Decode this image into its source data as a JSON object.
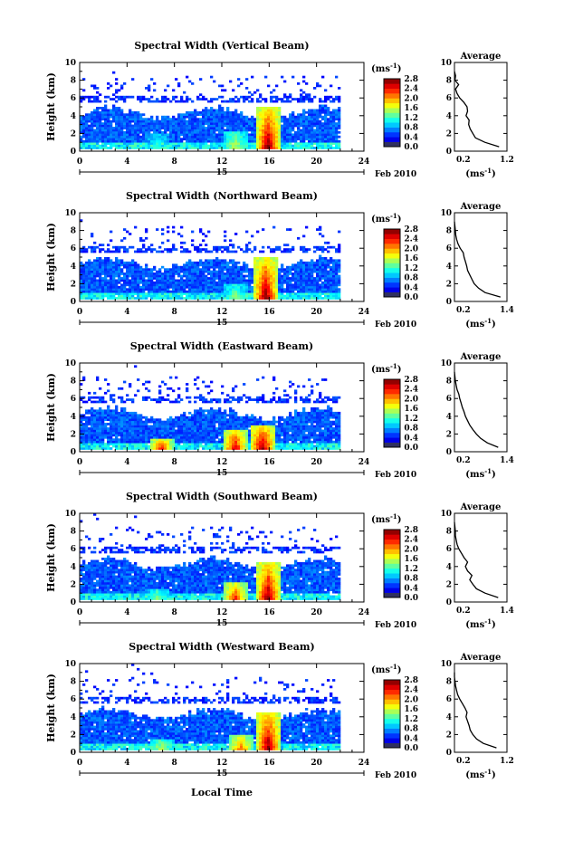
{
  "figure": {
    "date_label": "Feb 2010",
    "day_label": "15",
    "xlabel": "Local Time"
  },
  "chart_data": [
    {
      "type": "heatmap",
      "title": "Spectral Width (Vertical Beam)",
      "ylabel": "Height (km)",
      "xlabel": "",
      "xlim": [
        0,
        24
      ],
      "ylim": [
        0,
        10
      ],
      "xticks": [
        0,
        4,
        8,
        12,
        16,
        20,
        24
      ],
      "yticks": [
        0,
        2,
        4,
        6,
        8,
        10
      ],
      "colorbar": {
        "unit_base": "(ms",
        "unit_exp": "-1",
        "unit_close": ")",
        "ticks": [
          "0.0",
          "0.4",
          "0.8",
          "1.2",
          "1.6",
          "2.0",
          "2.4",
          "2.8"
        ],
        "range": [
          0,
          2.8
        ]
      },
      "data_extent_hours": 22,
      "convective_cores": [
        {
          "time": 6.5,
          "top_km": 1.8,
          "peak": 1.2
        },
        {
          "time": 13,
          "top_km": 2.2,
          "peak": 1.6
        },
        {
          "time": 15.8,
          "top_km": 5.0,
          "peak": 2.8
        }
      ],
      "average_profile": {
        "title": "Average",
        "xlabel_base": "(ms",
        "xlabel_exp": "-1",
        "xlabel_close": ")",
        "xlim": [
          0.2,
          1.2
        ],
        "xticks": [
          "0.2",
          "1.2"
        ],
        "ylim": [
          0,
          10
        ],
        "yticks": [
          0,
          2,
          4,
          6,
          8,
          10
        ],
        "heights": [
          0.5,
          1,
          1.5,
          2,
          2.5,
          3,
          3.5,
          4,
          4.5,
          5,
          5.5,
          6,
          6.5,
          7,
          7.5,
          8,
          8.5,
          9
        ],
        "values": [
          1.05,
          0.78,
          0.6,
          0.55,
          0.5,
          0.47,
          0.48,
          0.42,
          0.45,
          0.44,
          0.38,
          0.3,
          0.25,
          0.22,
          0.28,
          0.21,
          0.22,
          0.2
        ]
      }
    },
    {
      "type": "heatmap",
      "title": "Spectral Width (Northward Beam)",
      "ylabel": "Height (km)",
      "xlabel": "",
      "xlim": [
        0,
        24
      ],
      "ylim": [
        0,
        10
      ],
      "xticks": [
        0,
        4,
        8,
        12,
        16,
        20,
        24
      ],
      "yticks": [
        0,
        2,
        4,
        6,
        8,
        10
      ],
      "colorbar": {
        "unit_base": "(ms",
        "unit_exp": "-1",
        "unit_close": ")",
        "ticks": [
          "0.0",
          "0.4",
          "0.8",
          "1.2",
          "1.6",
          "2.0",
          "2.4",
          "2.8"
        ],
        "range": [
          0,
          2.8
        ]
      },
      "data_extent_hours": 22,
      "convective_cores": [
        {
          "time": 13,
          "top_km": 2.0,
          "peak": 1.4
        },
        {
          "time": 15.6,
          "top_km": 5.0,
          "peak": 2.8
        }
      ],
      "average_profile": {
        "title": "Average",
        "xlabel_base": "(ms",
        "xlabel_exp": "-1",
        "xlabel_close": ")",
        "xlim": [
          0.2,
          1.4
        ],
        "xticks": [
          "0.2",
          "1.4"
        ],
        "ylim": [
          0,
          10
        ],
        "yticks": [
          0,
          2,
          4,
          6,
          8,
          10
        ],
        "heights": [
          0.5,
          1,
          1.5,
          2,
          2.5,
          3,
          3.5,
          4,
          4.5,
          5,
          5.5,
          6,
          6.5,
          7,
          7.5,
          8,
          8.5,
          9
        ],
        "values": [
          1.25,
          0.9,
          0.75,
          0.65,
          0.6,
          0.55,
          0.5,
          0.48,
          0.45,
          0.42,
          0.4,
          0.33,
          0.28,
          0.25,
          0.23,
          0.22,
          0.21,
          0.2
        ]
      }
    },
    {
      "type": "heatmap",
      "title": "Spectral Width (Eastward Beam)",
      "ylabel": "Height (km)",
      "xlabel": "",
      "xlim": [
        0,
        24
      ],
      "ylim": [
        0,
        10
      ],
      "xticks": [
        0,
        4,
        8,
        12,
        16,
        20,
        24
      ],
      "yticks": [
        0,
        2,
        4,
        6,
        8,
        10
      ],
      "colorbar": {
        "unit_base": "(ms",
        "unit_exp": "-1",
        "unit_close": ")",
        "ticks": [
          "0.0",
          "0.4",
          "0.8",
          "1.2",
          "1.6",
          "2.0",
          "2.4",
          "2.8"
        ],
        "range": [
          0,
          2.8
        ]
      },
      "data_extent_hours": 22,
      "convective_cores": [
        {
          "time": 6.8,
          "top_km": 1.5,
          "peak": 2.4
        },
        {
          "time": 13,
          "top_km": 2.5,
          "peak": 2.6
        },
        {
          "time": 15.3,
          "top_km": 3.0,
          "peak": 2.8
        }
      ],
      "average_profile": {
        "title": "Average",
        "xlabel_base": "(ms",
        "xlabel_exp": "-1",
        "xlabel_close": ")",
        "xlim": [
          0.2,
          1.4
        ],
        "xticks": [
          "0.2",
          "1.4"
        ],
        "ylim": [
          0,
          10
        ],
        "yticks": [
          0,
          2,
          4,
          6,
          8,
          10
        ],
        "heights": [
          0.5,
          1,
          1.5,
          2,
          2.5,
          3,
          3.5,
          4,
          4.5,
          5,
          5.5,
          6,
          6.5,
          7,
          7.5,
          8,
          8.5,
          9
        ],
        "values": [
          1.2,
          0.95,
          0.8,
          0.7,
          0.62,
          0.55,
          0.5,
          0.45,
          0.42,
          0.38,
          0.35,
          0.32,
          0.3,
          0.26,
          0.24,
          0.22,
          0.21,
          0.2
        ]
      }
    },
    {
      "type": "heatmap",
      "title": "Spectral Width (Southward Beam)",
      "ylabel": "Height (km)",
      "xlabel": "",
      "xlim": [
        0,
        24
      ],
      "ylim": [
        0,
        10
      ],
      "xticks": [
        0,
        4,
        8,
        12,
        16,
        20,
        24
      ],
      "yticks": [
        0,
        2,
        4,
        6,
        8,
        10
      ],
      "colorbar": {
        "unit_base": "(ms",
        "unit_exp": "-1",
        "unit_close": ")",
        "ticks": [
          "0.0",
          "0.4",
          "0.8",
          "1.2",
          "1.6",
          "2.0",
          "2.4",
          "2.8"
        ],
        "range": [
          0,
          2.8
        ]
      },
      "data_extent_hours": 22,
      "convective_cores": [
        {
          "time": 6.5,
          "top_km": 1.5,
          "peak": 1.4
        },
        {
          "time": 13,
          "top_km": 2.2,
          "peak": 2.4
        },
        {
          "time": 15.8,
          "top_km": 4.5,
          "peak": 2.8
        }
      ],
      "average_profile": {
        "title": "Average",
        "xlabel_base": "(ms",
        "xlabel_exp": "-1",
        "xlabel_close": ")",
        "xlim": [
          0.2,
          1.4
        ],
        "xticks": [
          "0.2",
          "1.4"
        ],
        "ylim": [
          0,
          10
        ],
        "yticks": [
          0,
          2,
          4,
          6,
          8,
          10
        ],
        "heights": [
          0.5,
          1,
          1.5,
          2,
          2.5,
          3,
          3.5,
          4,
          4.5,
          5,
          5.5,
          6,
          6.5,
          7,
          7.5,
          8,
          8.5,
          9
        ],
        "values": [
          1.2,
          0.9,
          0.7,
          0.62,
          0.55,
          0.6,
          0.5,
          0.45,
          0.5,
          0.42,
          0.36,
          0.3,
          0.26,
          0.24,
          0.22,
          0.22,
          0.21,
          0.2
        ]
      }
    },
    {
      "type": "heatmap",
      "title": "Spectral Width (Westward Beam)",
      "ylabel": "Height (km)",
      "xlabel": "",
      "xlim": [
        0,
        24
      ],
      "ylim": [
        0,
        10
      ],
      "xticks": [
        0,
        4,
        8,
        12,
        16,
        20,
        24
      ],
      "yticks": [
        0,
        2,
        4,
        6,
        8,
        10
      ],
      "colorbar": {
        "unit_base": "(ms",
        "unit_exp": "-1",
        "unit_close": ")",
        "ticks": [
          "0.0",
          "0.4",
          "0.8",
          "1.2",
          "1.6",
          "2.0",
          "2.4",
          "2.8"
        ],
        "range": [
          0,
          2.8
        ]
      },
      "data_extent_hours": 22,
      "convective_cores": [
        {
          "time": 6.8,
          "top_km": 1.5,
          "peak": 1.6
        },
        {
          "time": 13.5,
          "top_km": 2.0,
          "peak": 2.2
        },
        {
          "time": 15.8,
          "top_km": 4.5,
          "peak": 2.8
        }
      ],
      "average_profile": {
        "title": "Average",
        "xlabel_base": "(ms",
        "xlabel_exp": "-1",
        "xlabel_close": ")",
        "xlim": [
          0.2,
          1.2
        ],
        "xticks": [
          "0.2",
          "1.2"
        ],
        "ylim": [
          0,
          10
        ],
        "yticks": [
          0,
          2,
          4,
          6,
          8,
          10
        ],
        "heights": [
          0.5,
          1,
          1.5,
          2,
          2.5,
          3,
          3.5,
          4,
          4.5,
          5,
          5.5,
          6,
          6.5,
          7,
          7.5,
          8,
          8.5,
          9
        ],
        "values": [
          1.0,
          0.75,
          0.62,
          0.55,
          0.5,
          0.48,
          0.45,
          0.42,
          0.44,
          0.4,
          0.35,
          0.3,
          0.26,
          0.24,
          0.22,
          0.21,
          0.2,
          0.2
        ]
      }
    }
  ]
}
